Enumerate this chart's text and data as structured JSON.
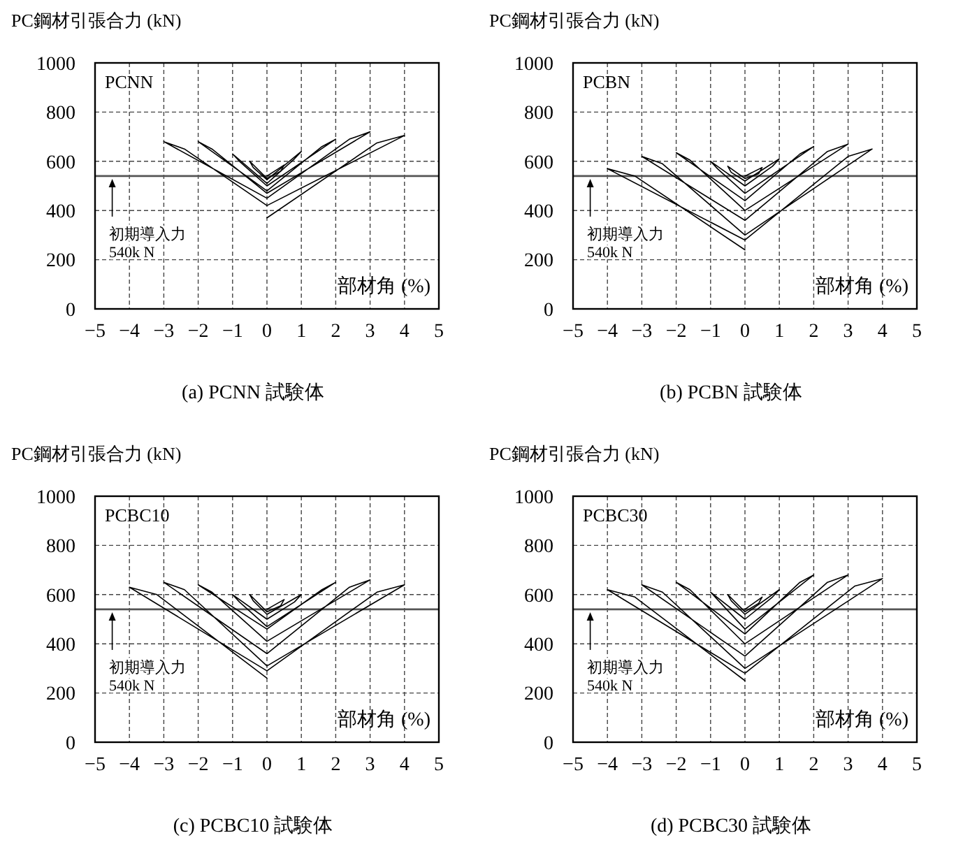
{
  "chart_data": [
    {
      "type": "line",
      "title": "(a)  PCNN 試験体",
      "ylabel": "PC鋼材引張合力 (kN)",
      "xlabel": "部材角 (%)",
      "annotations": [
        "PCNN"
      ],
      "xlim": [
        -5,
        5
      ],
      "xticks": [
        -5,
        -4,
        -3,
        -2,
        -1,
        0,
        1,
        2,
        3,
        4,
        5
      ],
      "ylim": [
        0,
        1000
      ],
      "yticks": [
        0,
        200,
        400,
        600,
        800,
        1000
      ],
      "grid": true,
      "line_style": "solid",
      "ref_lines": [
        {
          "axis": "y",
          "value": 540,
          "label": "初期導入力\n540k N"
        }
      ],
      "series": [
        {
          "color": "#000000",
          "x": [
            0,
            0.5,
            0.4,
            0,
            -0.5,
            -0.4,
            0
          ],
          "values": [
            540,
            585,
            560,
            530,
            600,
            575,
            525
          ]
        },
        {
          "color": "#000000",
          "x": [
            0,
            1,
            0.8,
            0,
            -1,
            -0.8,
            0,
            2,
            1.6,
            0,
            -2,
            -1.6,
            0,
            3,
            2.4,
            0,
            -3,
            -2.4,
            0,
            4,
            3.2,
            0
          ],
          "values": [
            525,
            640,
            610,
            510,
            630,
            600,
            500,
            690,
            660,
            480,
            680,
            650,
            470,
            720,
            690,
            450,
            680,
            650,
            420,
            705,
            675,
            370
          ]
        }
      ]
    },
    {
      "type": "line",
      "title": "(b)  PCBN 試験体",
      "ylabel": "PC鋼材引張合力 (kN)",
      "xlabel": "部材角 (%)",
      "annotations": [
        "PCBN"
      ],
      "xlim": [
        -5,
        5
      ],
      "xticks": [
        -5,
        -4,
        -3,
        -2,
        -1,
        0,
        1,
        2,
        3,
        4,
        5
      ],
      "ylim": [
        0,
        1000
      ],
      "yticks": [
        0,
        200,
        400,
        600,
        800,
        1000
      ],
      "grid": true,
      "line_style": "solid",
      "ref_lines": [
        {
          "axis": "y",
          "value": 540,
          "label": "初期導入力\n540k N"
        }
      ],
      "series": [
        {
          "color": "#000000",
          "x": [
            0,
            0.5,
            0.4,
            0,
            -0.5,
            -0.4,
            0
          ],
          "values": [
            540,
            575,
            550,
            530,
            580,
            555,
            520
          ]
        },
        {
          "color": "#000000",
          "x": [
            0,
            1,
            0.8,
            0,
            -1,
            -0.8,
            0,
            2,
            1.6,
            0,
            -2,
            -1.6,
            0,
            3,
            2.4,
            0,
            -3,
            -2.4,
            0,
            3.7,
            3,
            0,
            -4,
            -3.2,
            0
          ],
          "values": [
            520,
            610,
            580,
            500,
            600,
            570,
            470,
            660,
            630,
            440,
            635,
            605,
            400,
            670,
            640,
            360,
            620,
            590,
            300,
            650,
            620,
            280,
            570,
            540,
            240
          ]
        }
      ]
    },
    {
      "type": "line",
      "title": "(c)  PCBC10 試験体",
      "ylabel": "PC鋼材引張合力 (kN)",
      "xlabel": "部材角 (%)",
      "annotations": [
        "PCBC10"
      ],
      "xlim": [
        -5,
        5
      ],
      "xticks": [
        -5,
        -4,
        -3,
        -2,
        -1,
        0,
        1,
        2,
        3,
        4,
        5
      ],
      "ylim": [
        0,
        1000
      ],
      "yticks": [
        0,
        200,
        400,
        600,
        800,
        1000
      ],
      "grid": true,
      "line_style": "solid",
      "ref_lines": [
        {
          "axis": "y",
          "value": 540,
          "label": "初期導入力\n540k N"
        }
      ],
      "series": [
        {
          "color": "#000000",
          "x": [
            0,
            0.5,
            0.4,
            0,
            -0.5,
            -0.4,
            0
          ],
          "values": [
            540,
            580,
            555,
            530,
            600,
            575,
            520
          ]
        },
        {
          "color": "#000000",
          "x": [
            0,
            1,
            0.8,
            0,
            -1,
            -0.8,
            0,
            2,
            1.6,
            0,
            -2,
            -1.6,
            0,
            3,
            2.4,
            0,
            -3,
            -2.4,
            0,
            4,
            3.2,
            0,
            -4,
            -3.2,
            0
          ],
          "values": [
            520,
            600,
            570,
            500,
            600,
            570,
            470,
            650,
            620,
            460,
            640,
            610,
            410,
            660,
            630,
            360,
            650,
            620,
            310,
            640,
            610,
            290,
            630,
            600,
            260
          ]
        }
      ]
    },
    {
      "type": "line",
      "title": "(d)  PCBC30 試験体",
      "ylabel": "PC鋼材引張合力 (kN)",
      "xlabel": "部材角 (%)",
      "annotations": [
        "PCBC30"
      ],
      "xlim": [
        -5,
        5
      ],
      "xticks": [
        -5,
        -4,
        -3,
        -2,
        -1,
        0,
        1,
        2,
        3,
        4,
        5
      ],
      "ylim": [
        0,
        1000
      ],
      "yticks": [
        0,
        200,
        400,
        600,
        800,
        1000
      ],
      "grid": true,
      "line_style": "solid",
      "ref_lines": [
        {
          "axis": "y",
          "value": 540,
          "label": "初期導入力\n540k N"
        }
      ],
      "series": [
        {
          "color": "#000000",
          "x": [
            0,
            0.5,
            0.4,
            0,
            -0.5,
            -0.4,
            0
          ],
          "values": [
            540,
            590,
            565,
            530,
            600,
            575,
            520
          ]
        },
        {
          "color": "#000000",
          "x": [
            0,
            1,
            0.8,
            0,
            -1,
            -0.8,
            0,
            2,
            1.6,
            0,
            -2,
            -1.6,
            0,
            3,
            2.4,
            0,
            -3,
            -2.4,
            0,
            4,
            3.2,
            0,
            -4,
            -3.2,
            0
          ],
          "values": [
            520,
            620,
            590,
            500,
            610,
            580,
            460,
            680,
            650,
            440,
            650,
            620,
            400,
            680,
            650,
            350,
            640,
            610,
            300,
            665,
            635,
            280,
            620,
            590,
            250
          ]
        }
      ]
    }
  ]
}
